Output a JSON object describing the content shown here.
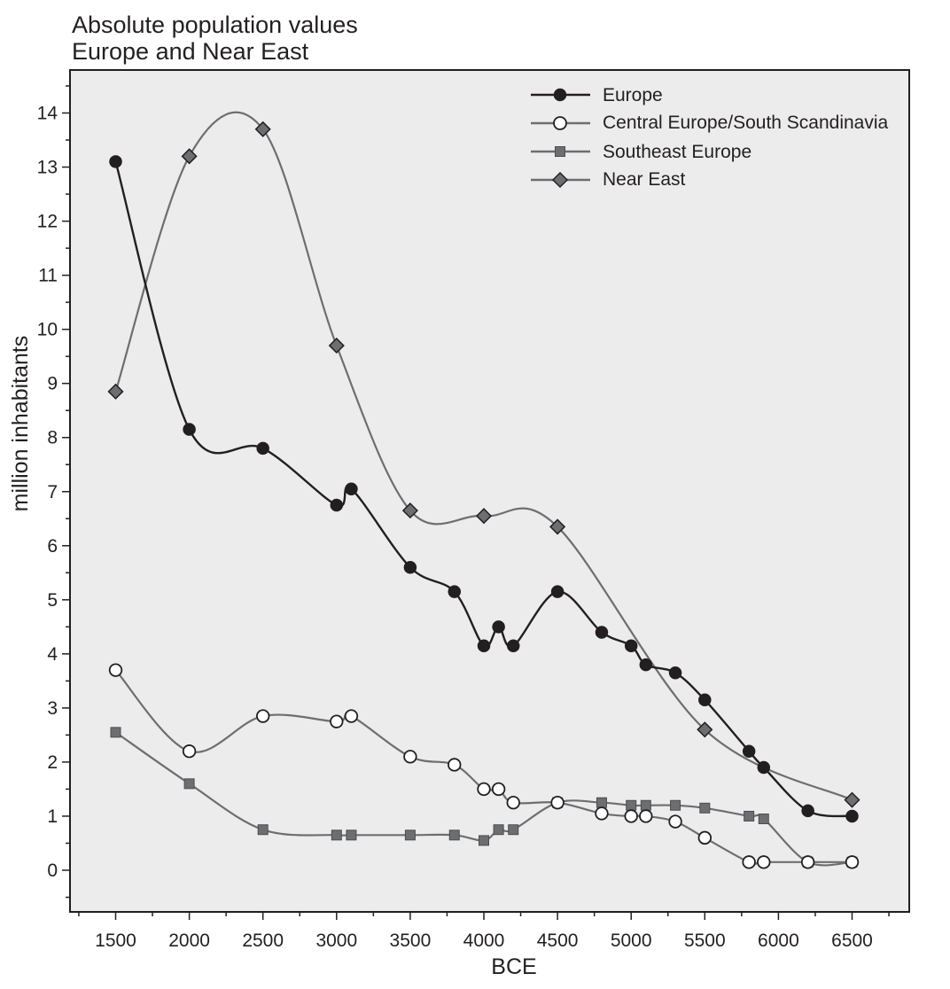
{
  "chart_data": {
    "type": "line",
    "title": "Absolute population values",
    "subtitle": "Europe and Near East",
    "xlabel": "BCE",
    "ylabel": "million inhabitants",
    "xlim": [
      1200,
      6900
    ],
    "ylim": [
      -0.8,
      14.8
    ],
    "xticks": [
      1500,
      2000,
      2500,
      3000,
      3500,
      4000,
      4500,
      5000,
      5500,
      6000,
      6500
    ],
    "yticks": [
      0,
      1,
      2,
      3,
      4,
      5,
      6,
      7,
      8,
      9,
      10,
      11,
      12,
      13,
      14
    ],
    "grid": false,
    "legend_position": "top-right",
    "plot_background": "#ececec",
    "series": [
      {
        "name": "Europe",
        "marker": "circle-filled",
        "line_color": "#231f20",
        "marker_fill": "#231f20",
        "x": [
          1500,
          2000,
          2500,
          3000,
          3100,
          3500,
          3800,
          4000,
          4100,
          4200,
          4500,
          4800,
          5000,
          5100,
          5300,
          5500,
          5800,
          5900,
          6200,
          6500
        ],
        "y": [
          13.1,
          8.15,
          7.8,
          6.75,
          7.05,
          5.6,
          5.15,
          4.15,
          4.5,
          4.15,
          5.15,
          4.4,
          4.15,
          3.8,
          3.65,
          3.15,
          2.2,
          1.9,
          1.1,
          1.0
        ]
      },
      {
        "name": "Central Europe/South Scandinavia",
        "marker": "circle-open",
        "line_color": "#6d6e71",
        "marker_fill": "#ffffff",
        "x": [
          1500,
          2000,
          2500,
          3000,
          3100,
          3500,
          3800,
          4000,
          4100,
          4200,
          4500,
          4800,
          5000,
          5100,
          5300,
          5500,
          5800,
          5900,
          6200,
          6500
        ],
        "y": [
          3.7,
          2.2,
          2.85,
          2.75,
          2.85,
          2.1,
          1.95,
          1.5,
          1.5,
          1.25,
          1.25,
          1.05,
          1.0,
          1.0,
          0.9,
          0.6,
          0.15,
          0.15,
          0.15,
          0.15
        ]
      },
      {
        "name": "Southeast Europe",
        "marker": "square",
        "line_color": "#6d6e71",
        "marker_fill": "#6d6e71",
        "x": [
          1500,
          2000,
          2500,
          3000,
          3100,
          3500,
          3800,
          4000,
          4100,
          4200,
          4500,
          4800,
          5000,
          5100,
          5300,
          5500,
          5800,
          5900,
          6200,
          6500
        ],
        "y": [
          2.55,
          1.6,
          0.75,
          0.65,
          0.65,
          0.65,
          0.65,
          0.55,
          0.75,
          0.75,
          1.25,
          1.25,
          1.2,
          1.2,
          1.2,
          1.15,
          1.0,
          0.95,
          0.15,
          0.15
        ]
      },
      {
        "name": "Near East",
        "marker": "diamond",
        "line_color": "#6d6e71",
        "marker_fill": "#6d6e71",
        "x": [
          1500,
          2000,
          2500,
          3000,
          3500,
          4000,
          4500,
          5500,
          6500
        ],
        "y": [
          8.85,
          13.2,
          13.7,
          9.7,
          6.65,
          6.55,
          6.35,
          2.6,
          1.3
        ]
      }
    ]
  }
}
